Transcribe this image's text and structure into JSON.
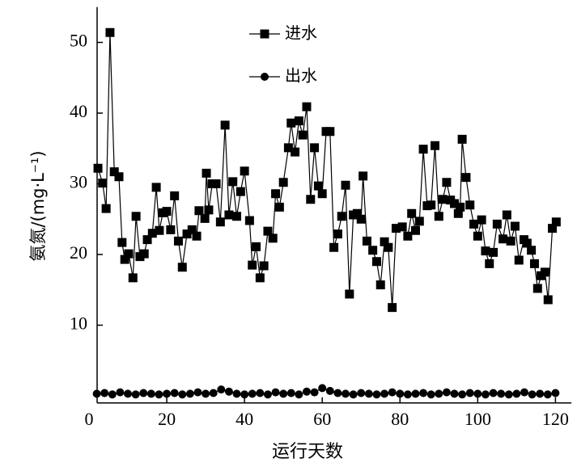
{
  "chart_data": {
    "type": "line",
    "xlabel": "运行天数",
    "ylabel": "氨氮/(mg·L⁻¹)",
    "xlim": [
      0,
      122
    ],
    "xticks": [
      0,
      20,
      40,
      60,
      80,
      100,
      120
    ],
    "ylim": [
      -1,
      55
    ],
    "yticks": [
      10,
      20,
      30,
      40,
      50
    ],
    "series": [
      {
        "name": "进水",
        "color": "#000000",
        "marker": "square",
        "x": [
          2.3,
          3.5,
          4.4,
          5.4,
          6.5,
          7.7,
          8.5,
          9.2,
          10.2,
          11.3,
          12.1,
          13.1,
          14.2,
          15,
          16.3,
          17.3,
          18.1,
          19,
          20,
          21,
          22,
          23,
          24,
          25.2,
          26.5,
          27.7,
          28.3,
          29.8,
          30.2,
          30.8,
          31.7,
          32.7,
          33.8,
          35,
          36,
          37,
          38,
          39,
          40,
          41.3,
          42,
          43,
          44,
          45,
          46,
          47.3,
          48,
          49,
          50,
          51.3,
          52,
          53,
          54,
          55,
          56,
          57,
          58,
          59,
          60,
          61,
          62,
          63,
          64,
          65,
          66,
          67,
          68,
          69,
          70,
          70.5,
          71.5,
          73,
          74,
          75,
          76,
          77,
          78,
          79,
          80.6,
          82,
          83,
          84,
          85,
          86,
          87,
          88,
          89,
          90,
          91,
          92,
          93,
          94,
          95,
          95.5,
          96,
          97,
          98,
          99,
          100,
          101,
          102,
          103,
          104,
          105,
          106.5,
          107.5,
          108.5,
          109.6,
          110.6,
          111.9,
          112.7,
          113.8,
          114.6,
          115.4,
          116.3,
          117.3,
          118.1,
          119.2,
          120.2
        ],
        "values": [
          32.2,
          30.1,
          26.5,
          51.4,
          31.7,
          31.0,
          21.7,
          19.3,
          20.1,
          16.7,
          25.4,
          19.7,
          20.1,
          22.1,
          23,
          29.5,
          23.4,
          25.9,
          26.1,
          23.5,
          28.3,
          21.9,
          18.2,
          22.9,
          23.5,
          22.6,
          26.2,
          25.1,
          31.5,
          26.3,
          30,
          30,
          24.6,
          38.3,
          25.6,
          30.3,
          25.4,
          28.9,
          31.8,
          24.8,
          18.5,
          21.1,
          16.7,
          18.4,
          23.3,
          22.3,
          28.6,
          26.7,
          30.2,
          35.1,
          38.6,
          34.5,
          38.9,
          36.9,
          40.9,
          27.8,
          35.1,
          29.7,
          28.6,
          37.4,
          37.4,
          21,
          22.9,
          25.4,
          29.8,
          14.4,
          25.6,
          25.8,
          25,
          31.1,
          21.9,
          20.6,
          19,
          15.7,
          21.8,
          21,
          12.5,
          23.7,
          23.9,
          22.6,
          25.8,
          23.4,
          24.7,
          34.9,
          26.9,
          27,
          35.4,
          25.4,
          27.8,
          30.2,
          27.7,
          27.2,
          25.8,
          26.7,
          36.3,
          30.9,
          27,
          24.3,
          22.6,
          24.9,
          20.5,
          18.7,
          20.3,
          24.3,
          22.2,
          25.6,
          21.9,
          24,
          19.2,
          22.1,
          21.6,
          20.6,
          18.7,
          15.2,
          17,
          17.5,
          13.6,
          23.7,
          24.6
        ]
      },
      {
        "name": "出水",
        "color": "#000000",
        "marker": "circle",
        "x": [
          2,
          4,
          6,
          8,
          10,
          12,
          14,
          16,
          18,
          20,
          22,
          24,
          26,
          28,
          30,
          32,
          34,
          36,
          38,
          40,
          42,
          44,
          46,
          48,
          50,
          52,
          54,
          56,
          58,
          60,
          62,
          64,
          66,
          68,
          70,
          72,
          74,
          76,
          78,
          80,
          82,
          84,
          86,
          88,
          90,
          92,
          94,
          96,
          98,
          100,
          102,
          104,
          106,
          108,
          110,
          112,
          114,
          116,
          118,
          120
        ],
        "values": [
          0.3,
          0.4,
          0.2,
          0.5,
          0.3,
          0.2,
          0.4,
          0.3,
          0.2,
          0.3,
          0.4,
          0.2,
          0.3,
          0.5,
          0.3,
          0.4,
          0.9,
          0.6,
          0.3,
          0.2,
          0.3,
          0.4,
          0.2,
          0.5,
          0.3,
          0.4,
          0.2,
          0.6,
          0.5,
          1.1,
          0.7,
          0.4,
          0.3,
          0.2,
          0.4,
          0.3,
          0.2,
          0.3,
          0.5,
          0.3,
          0.2,
          0.3,
          0.4,
          0.2,
          0.3,
          0.5,
          0.3,
          0.2,
          0.4,
          0.3,
          0.2,
          0.4,
          0.3,
          0.2,
          0.3,
          0.5,
          0.2,
          0.3,
          0.2,
          0.4
        ]
      }
    ]
  }
}
